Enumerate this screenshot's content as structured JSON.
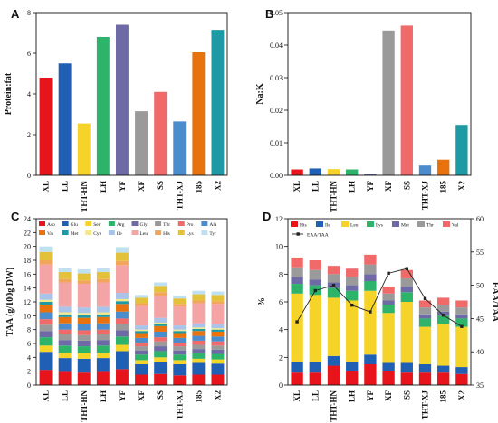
{
  "chart_data": [
    {
      "panel": "A",
      "type": "bar",
      "categories": [
        "XL",
        "LL",
        "THT-HN",
        "LH",
        "YF",
        "XF",
        "SS",
        "THT-XJ",
        "185",
        "X2"
      ],
      "values": [
        4.8,
        5.5,
        2.55,
        6.8,
        7.4,
        3.15,
        4.1,
        2.65,
        6.05,
        7.15
      ],
      "colors": [
        "#e8141b",
        "#1f5fb4",
        "#f5d328",
        "#2db36a",
        "#6e6aa6",
        "#9a9a9a",
        "#f06a6a",
        "#4a8ccc",
        "#e8720e",
        "#1e9aa4"
      ],
      "ylabel": "Protein:fat",
      "ylim": [
        0,
        8
      ],
      "yticks": [
        0,
        2,
        4,
        6,
        8
      ],
      "ytick_labels": [
        "0",
        "2",
        "4",
        "6",
        "8"
      ]
    },
    {
      "panel": "B",
      "type": "bar",
      "categories": [
        "XL",
        "LL",
        "THT-HN",
        "LH",
        "YF",
        "XF",
        "SS",
        "THT-XJ",
        "185",
        "X2"
      ],
      "values": [
        0.0018,
        0.0021,
        0.0019,
        0.0018,
        0.0005,
        0.0445,
        0.046,
        0.003,
        0.0048,
        0.0155
      ],
      "colors": [
        "#e8141b",
        "#1f5fb4",
        "#f5d328",
        "#2db36a",
        "#6e6aa6",
        "#9a9a9a",
        "#f06a6a",
        "#4a8ccc",
        "#e8720e",
        "#1e9aa4"
      ],
      "ylabel": "Na:K",
      "ylim": [
        0,
        0.05
      ],
      "yticks": [
        0,
        0.01,
        0.02,
        0.03,
        0.04,
        0.05
      ],
      "ytick_labels": [
        "0.00",
        "0.01",
        "0.02",
        "0.03",
        "0.04",
        "0.05"
      ]
    },
    {
      "panel": "C",
      "type": "bar",
      "stacked": true,
      "categories": [
        "XL",
        "LL",
        "THT-HN",
        "LH",
        "YF",
        "XF",
        "SS",
        "THT-XJ",
        "185",
        "X2"
      ],
      "ylabel": "TAA (g/100g DW)",
      "ylim": [
        0,
        24
      ],
      "yticks": [
        0,
        2,
        4,
        6,
        8,
        10,
        12,
        14,
        16,
        18,
        20,
        22,
        24
      ],
      "ytick_labels": [
        "0",
        "2",
        "4",
        "6",
        "8",
        "10",
        "12",
        "14",
        "16",
        "18",
        "20",
        "22",
        "24"
      ],
      "series": [
        {
          "name": "Asp",
          "color": "#e8141b",
          "values": [
            2.2,
            1.9,
            1.8,
            1.9,
            2.3,
            1.5,
            1.6,
            1.4,
            1.5,
            1.5
          ]
        },
        {
          "name": "Glu",
          "color": "#1f5fb4",
          "values": [
            2.6,
            2.0,
            2.0,
            2.0,
            2.6,
            1.5,
            1.7,
            1.6,
            1.7,
            1.6
          ]
        },
        {
          "name": "Ser",
          "color": "#f5d328",
          "values": [
            0.9,
            0.8,
            0.8,
            0.8,
            0.9,
            0.6,
            0.7,
            0.6,
            0.6,
            0.6
          ]
        },
        {
          "name": "Arg",
          "color": "#2db36a",
          "values": [
            1.2,
            1.0,
            1.0,
            1.0,
            1.2,
            0.8,
            0.9,
            0.8,
            0.8,
            0.8
          ]
        },
        {
          "name": "Gly",
          "color": "#6e6aa6",
          "values": [
            0.9,
            0.8,
            0.8,
            0.8,
            0.9,
            0.6,
            0.7,
            0.6,
            0.6,
            0.6
          ]
        },
        {
          "name": "Thr",
          "color": "#9a9a9a",
          "values": [
            0.9,
            0.8,
            0.8,
            0.8,
            0.9,
            0.6,
            0.7,
            0.6,
            0.6,
            0.6
          ]
        },
        {
          "name": "Pro",
          "color": "#f06a6a",
          "values": [
            0.8,
            0.7,
            0.7,
            0.7,
            0.8,
            0.5,
            0.6,
            0.5,
            0.6,
            0.6
          ]
        },
        {
          "name": "Ala",
          "color": "#4a8ccc",
          "values": [
            1.0,
            0.9,
            0.9,
            0.9,
            1.0,
            0.7,
            0.8,
            0.7,
            0.7,
            0.7
          ]
        },
        {
          "name": "Val",
          "color": "#e8720e",
          "values": [
            1.1,
            0.9,
            0.9,
            0.9,
            1.1,
            0.7,
            0.8,
            0.7,
            0.7,
            0.7
          ]
        },
        {
          "name": "Met",
          "color": "#1e9aa4",
          "values": [
            0.4,
            0.4,
            0.4,
            0.4,
            0.4,
            0.3,
            0.3,
            0.3,
            0.3,
            0.3
          ]
        },
        {
          "name": "Cys",
          "color": "#f4e98a",
          "values": [
            0.3,
            0.3,
            0.3,
            0.3,
            0.3,
            0.2,
            0.2,
            0.2,
            0.2,
            0.2
          ]
        },
        {
          "name": "Ile",
          "color": "#a9c4e8",
          "values": [
            0.9,
            0.8,
            0.8,
            0.8,
            0.9,
            0.6,
            0.7,
            0.6,
            0.6,
            0.6
          ]
        },
        {
          "name": "Leu",
          "color": "#f4a4a4",
          "values": [
            4.2,
            3.5,
            3.4,
            3.5,
            4.0,
            2.8,
            3.2,
            2.7,
            2.9,
            2.9
          ]
        },
        {
          "name": "His",
          "color": "#f2a65c",
          "values": [
            0.6,
            0.5,
            0.5,
            0.5,
            0.6,
            0.4,
            0.5,
            0.4,
            0.4,
            0.4
          ]
        },
        {
          "name": "Lys",
          "color": "#e3c13a",
          "values": [
            1.2,
            1.0,
            1.0,
            1.0,
            1.2,
            0.8,
            0.9,
            0.8,
            0.9,
            0.9
          ]
        },
        {
          "name": "Tyr",
          "color": "#bfe0f0",
          "values": [
            0.8,
            0.6,
            0.6,
            0.6,
            0.8,
            0.4,
            0.5,
            0.4,
            0.5,
            0.5
          ]
        }
      ]
    },
    {
      "panel": "D",
      "type": "bar",
      "stacked": true,
      "categories": [
        "XL",
        "LL",
        "THT-HN",
        "LH",
        "YF",
        "XF",
        "SS",
        "THT-XJ",
        "185",
        "X2"
      ],
      "ylabel": "%",
      "ylim": [
        0,
        12
      ],
      "yticks": [
        0,
        2,
        4,
        6,
        8,
        10,
        12
      ],
      "ytick_labels": [
        "0",
        "2",
        "4",
        "6",
        "8",
        "10",
        "12"
      ],
      "y2label": "EAA/TAA",
      "y2lim": [
        35,
        60
      ],
      "y2ticks": [
        35,
        40,
        45,
        50,
        55,
        60
      ],
      "y2tick_labels": [
        "35",
        "40",
        "45",
        "50",
        "55",
        "60"
      ],
      "series": [
        {
          "name": "His",
          "color": "#e8141b",
          "values": [
            0.9,
            0.9,
            1.4,
            1.0,
            1.5,
            1.0,
            0.9,
            0.9,
            0.9,
            0.8
          ]
        },
        {
          "name": "Ile",
          "color": "#1f5fb4",
          "values": [
            0.8,
            0.8,
            0.7,
            0.7,
            0.7,
            0.6,
            0.7,
            0.6,
            0.5,
            0.5
          ]
        },
        {
          "name": "Leu",
          "color": "#f5d328",
          "values": [
            4.9,
            4.8,
            4.2,
            4.4,
            4.6,
            3.6,
            4.4,
            2.7,
            3.0,
            2.9
          ]
        },
        {
          "name": "Lys",
          "color": "#2db36a",
          "values": [
            0.7,
            0.7,
            0.7,
            0.7,
            0.7,
            0.6,
            0.7,
            0.6,
            0.6,
            0.6
          ]
        },
        {
          "name": "Met",
          "color": "#6e6aa6",
          "values": [
            0.5,
            0.4,
            0.4,
            0.4,
            0.5,
            0.3,
            0.4,
            0.3,
            0.3,
            0.3
          ]
        },
        {
          "name": "Thr",
          "color": "#9a9a9a",
          "values": [
            0.7,
            0.7,
            0.6,
            0.6,
            0.7,
            0.5,
            0.6,
            0.5,
            0.5,
            0.5
          ]
        },
        {
          "name": "Val",
          "color": "#f06a6a",
          "values": [
            0.7,
            0.7,
            0.6,
            0.6,
            0.7,
            0.5,
            0.6,
            0.5,
            0.5,
            0.5
          ]
        }
      ],
      "line": {
        "name": "EAA/TAA",
        "color": "#222222",
        "axis": "right",
        "values": [
          44.5,
          49.2,
          50.0,
          47.0,
          46.0,
          51.8,
          52.5,
          48.0,
          45.5,
          43.8
        ]
      }
    }
  ]
}
